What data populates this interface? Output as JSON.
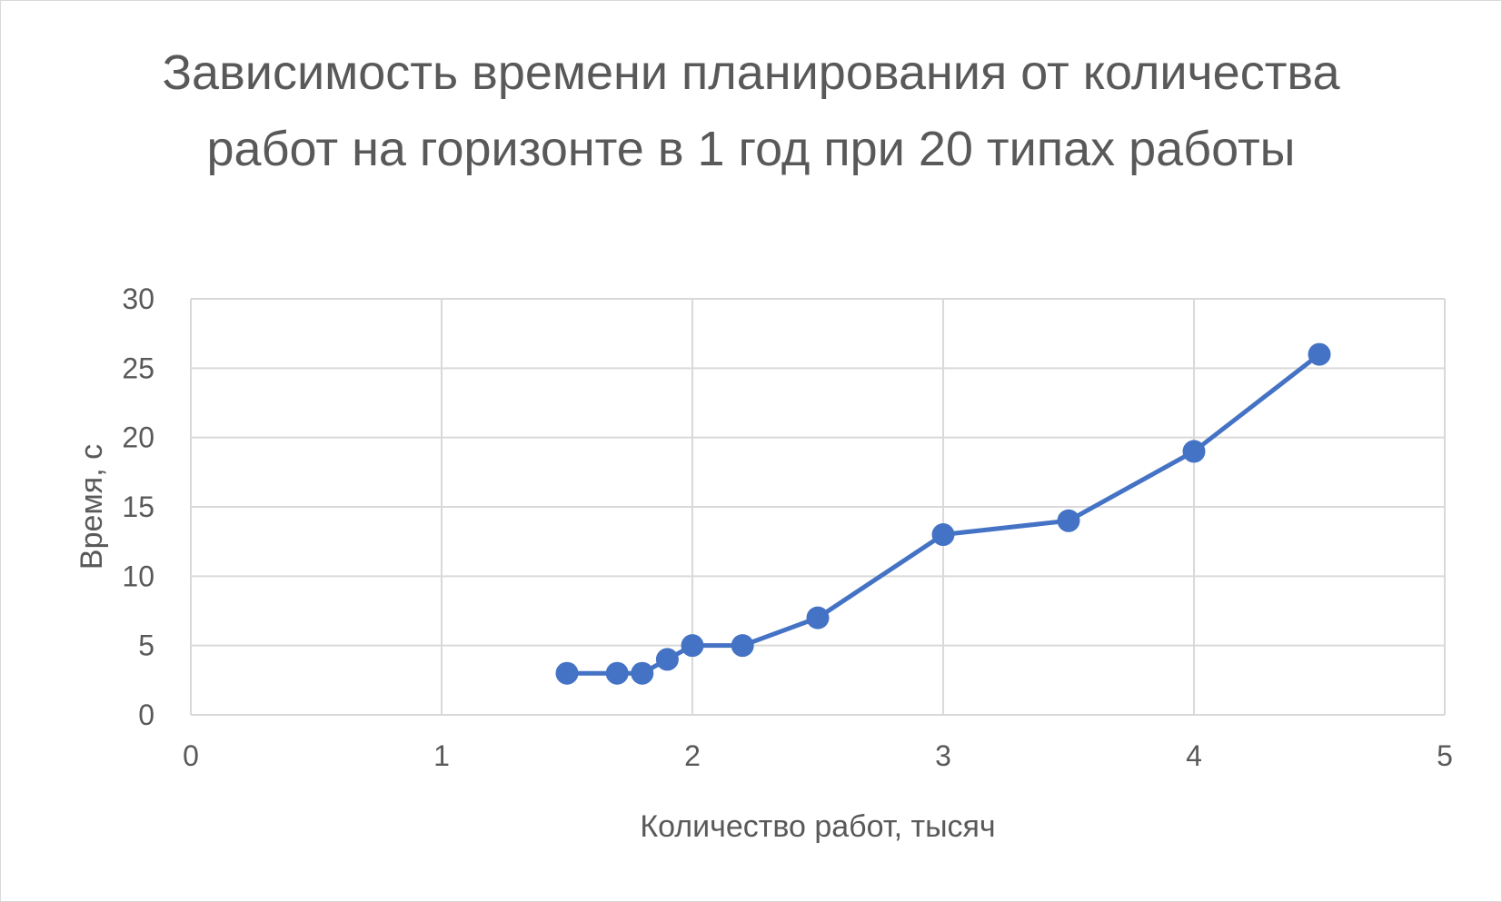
{
  "chart_data": {
    "type": "scatter",
    "title": "Зависимость времени планирования от количества работ на горизонте в 1 год при 20 типах работы",
    "xlabel": "Количество работ, тысяч",
    "ylabel": "Время, с",
    "xlim": [
      0,
      5
    ],
    "ylim": [
      0,
      30
    ],
    "x_ticks": [
      0,
      1,
      2,
      3,
      4,
      5
    ],
    "y_ticks": [
      0,
      5,
      10,
      15,
      20,
      25,
      30
    ],
    "grid": true,
    "legend": "none",
    "markers": true,
    "lines": true,
    "series": [
      {
        "color": "#4472c4",
        "x": [
          1.5,
          1.7,
          1.8,
          1.9,
          2.0,
          2.2,
          2.5,
          3.0,
          3.5,
          4.0,
          4.5
        ],
        "y": [
          3,
          3,
          3,
          4,
          5,
          5,
          7,
          13,
          14,
          19,
          26
        ]
      }
    ]
  },
  "colors": {
    "grid": "#d9d9d9",
    "text": "#595959",
    "series": "#4472c4"
  }
}
